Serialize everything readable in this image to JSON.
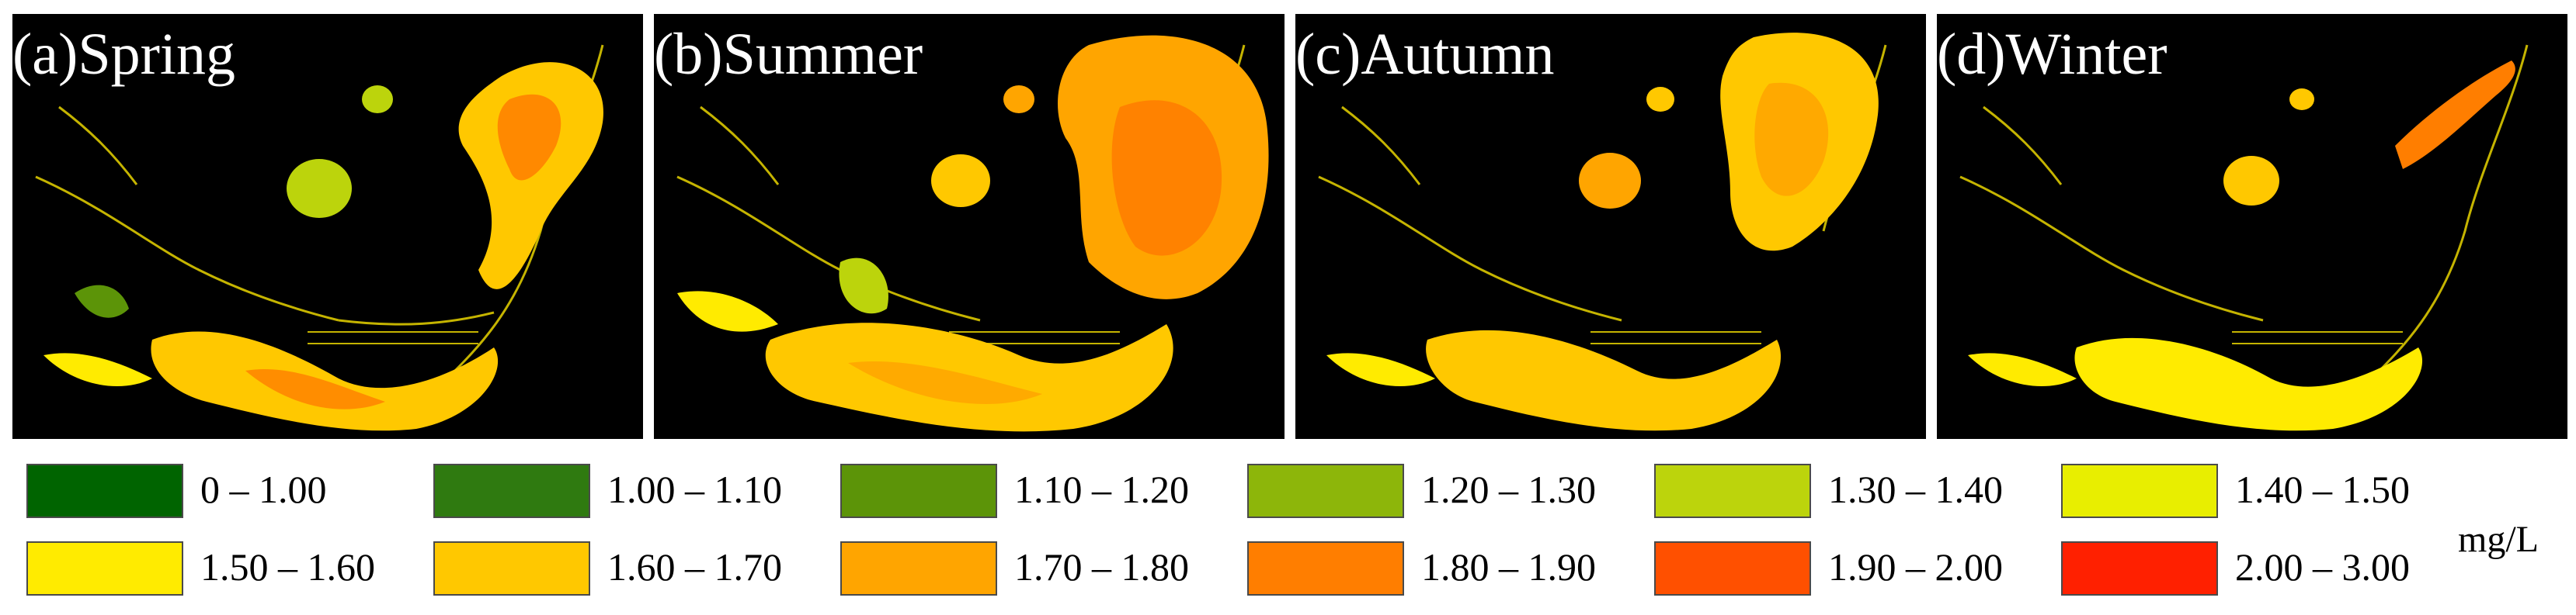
{
  "panels": [
    {
      "label": "(a)Spring"
    },
    {
      "label": "(b)Summer"
    },
    {
      "label": "(c)Autumn"
    },
    {
      "label": "(d)Winter"
    }
  ],
  "legend": {
    "unit": "mg/L",
    "items": [
      {
        "label": "0 – 1.00",
        "color": "#006400"
      },
      {
        "label": "1.00 – 1.10",
        "color": "#2f7a10"
      },
      {
        "label": "1.10 – 1.20",
        "color": "#5c9408"
      },
      {
        "label": "1.20 – 1.30",
        "color": "#8db60a"
      },
      {
        "label": "1.30 – 1.40",
        "color": "#bcd40c"
      },
      {
        "label": "1.40 – 1.50",
        "color": "#e8ee00"
      },
      {
        "label": "1.50 – 1.60",
        "color": "#ffeb00"
      },
      {
        "label": "1.60 – 1.70",
        "color": "#ffc800"
      },
      {
        "label": "1.70 – 1.80",
        "color": "#ffa500"
      },
      {
        "label": "1.80 – 1.90",
        "color": "#ff7e00"
      },
      {
        "label": "1.90 – 2.00",
        "color": "#ff5000"
      },
      {
        "label": "2.00 – 3.00",
        "color": "#ff2000"
      }
    ]
  }
}
